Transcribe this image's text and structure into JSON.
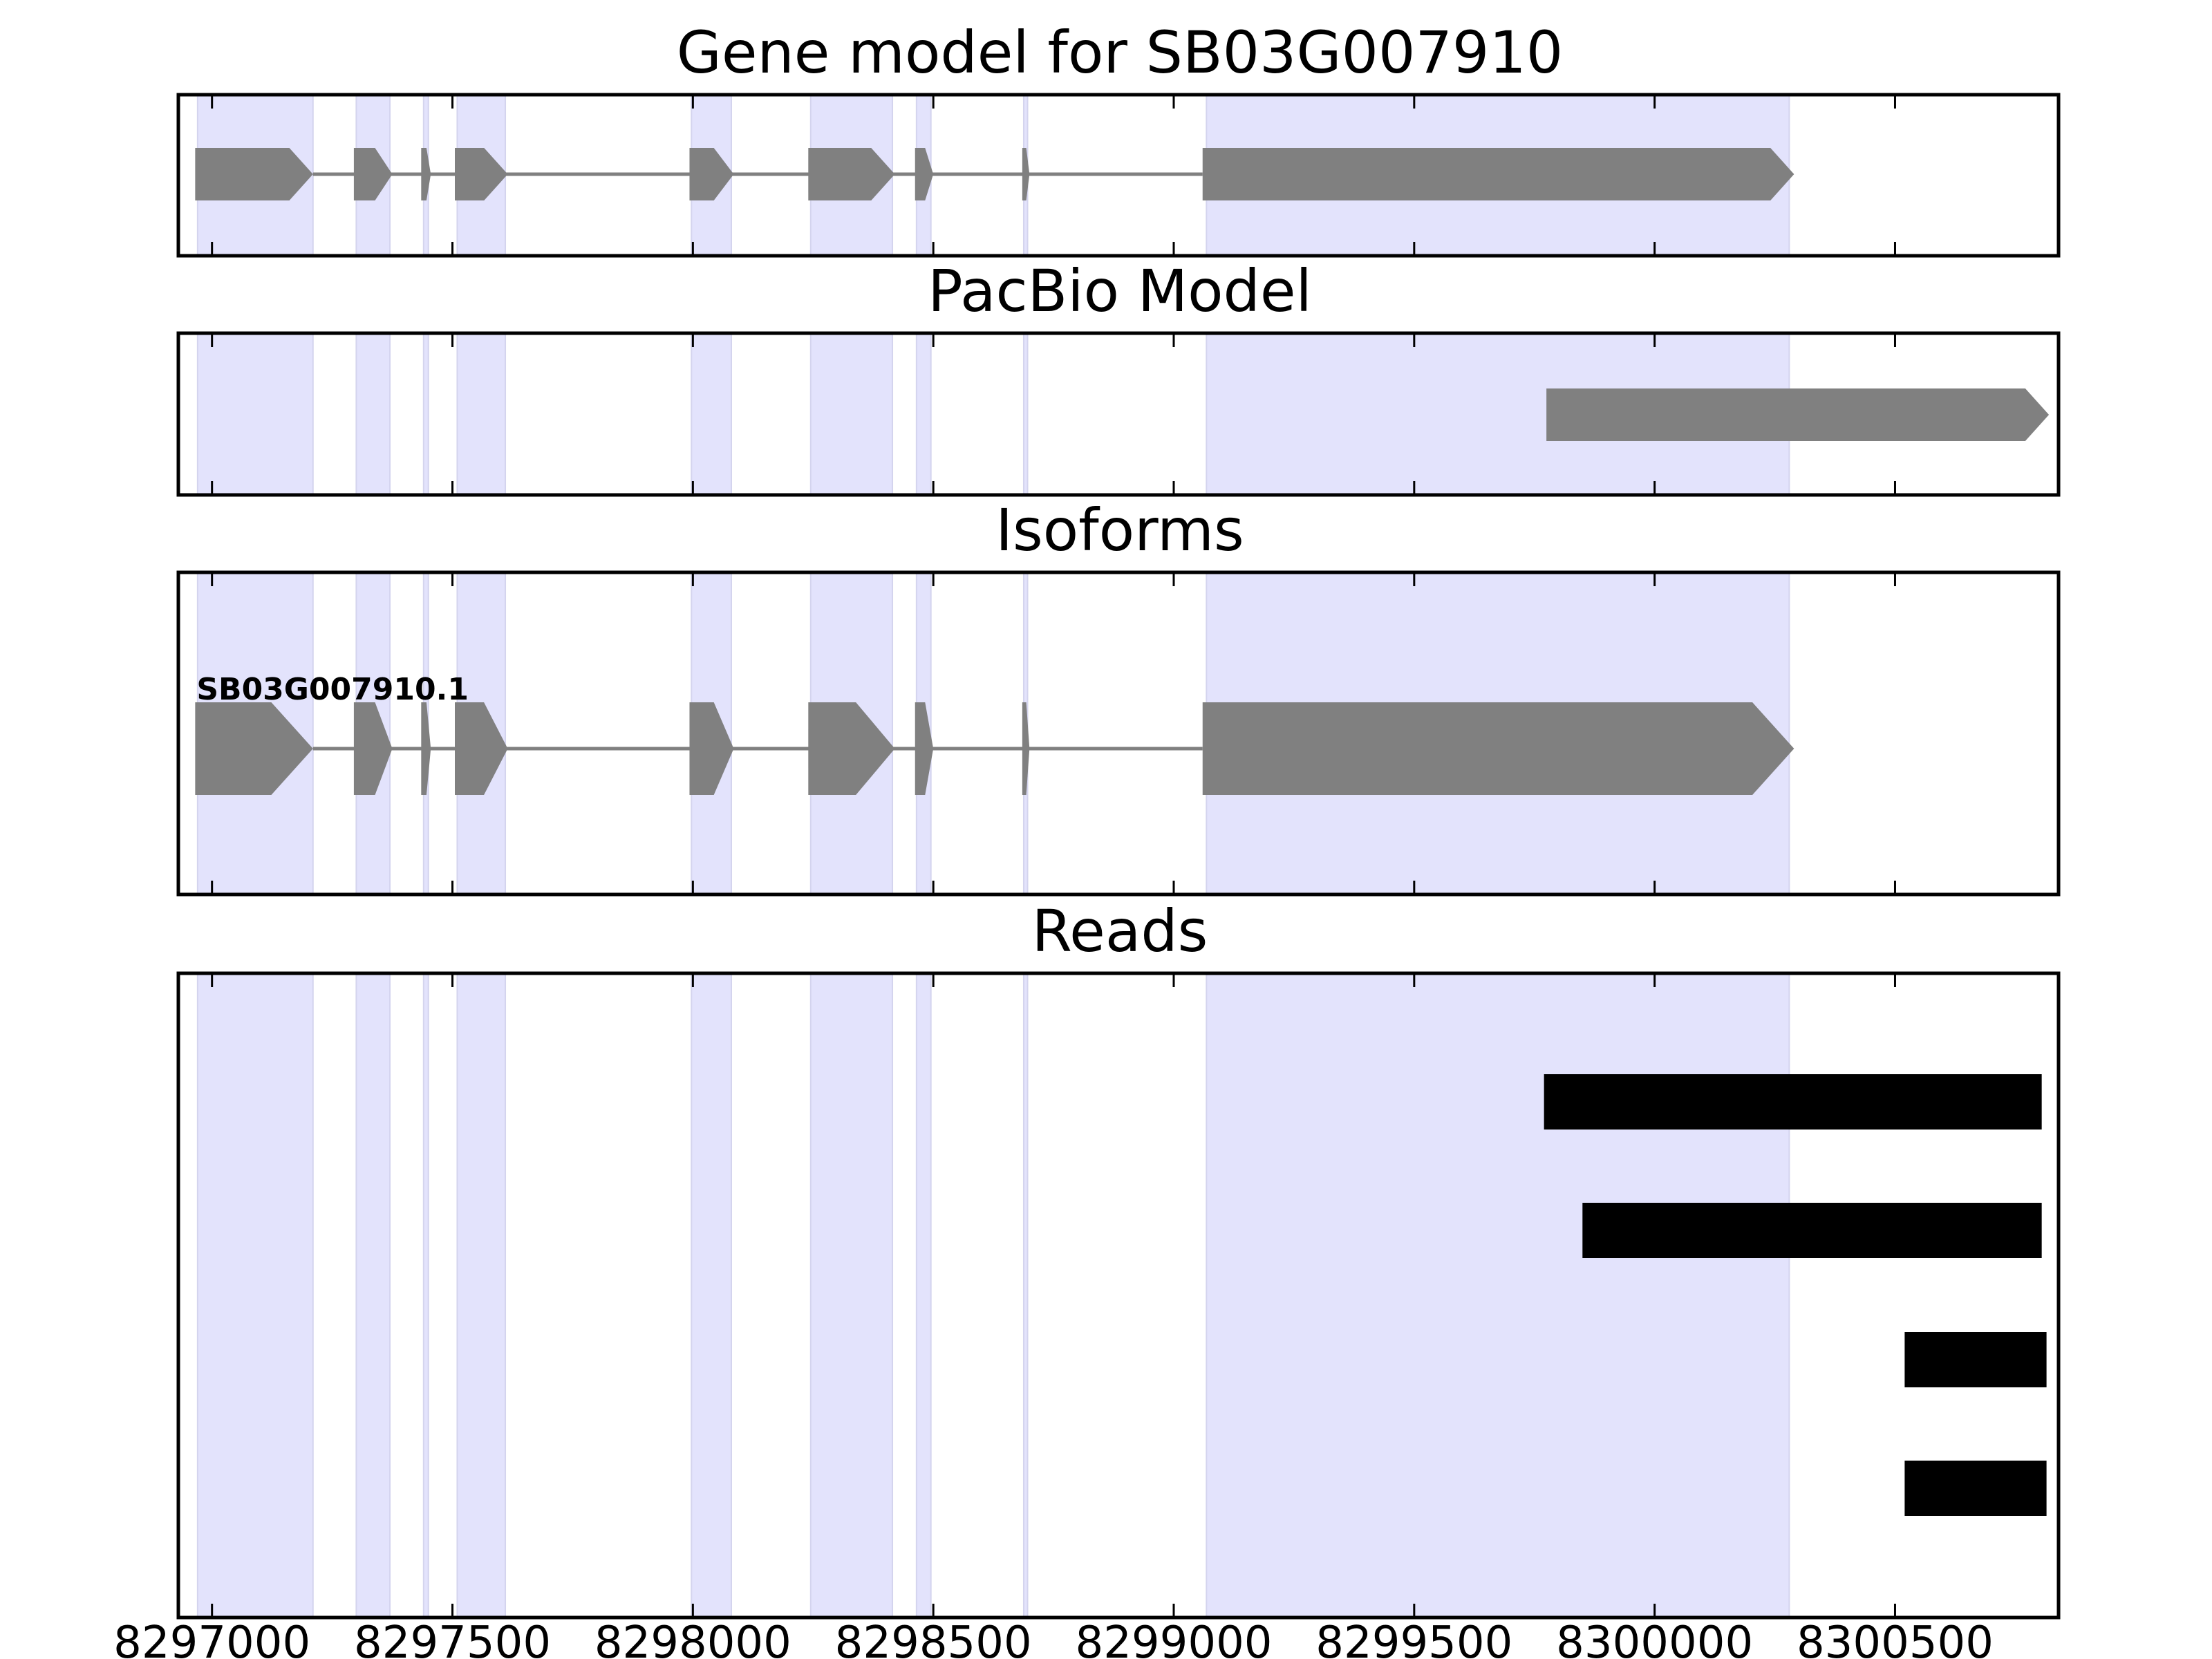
{
  "chart_data": {
    "type": "gene-track",
    "title": "Gene model for SB03G007910",
    "xlim": [
      8296930,
      8300840
    ],
    "x_ticks": [
      {
        "value": 8297000,
        "label": "8297000"
      },
      {
        "value": 8297500,
        "label": "8297500"
      },
      {
        "value": 8298000,
        "label": "8298000"
      },
      {
        "value": 8298500,
        "label": "8298500"
      },
      {
        "value": 8299000,
        "label": "8299000"
      },
      {
        "value": 8299500,
        "label": "8299500"
      },
      {
        "value": 8300000,
        "label": "8300000"
      },
      {
        "value": 8300500,
        "label": "8300500"
      }
    ],
    "colors": {
      "exon_shade": "#e3e3fc",
      "feature": "#808080",
      "read": "#000000",
      "frame": "#000000"
    },
    "shaded_exons": [
      [
        8296970,
        8297210
      ],
      [
        8297300,
        8297370
      ],
      [
        8297440,
        8297450
      ],
      [
        8297510,
        8297610
      ],
      [
        8297997,
        8298080
      ],
      [
        8298245,
        8298415
      ],
      [
        8298465,
        8298495
      ],
      [
        8298688,
        8298696
      ],
      [
        8299068,
        8300280
      ]
    ],
    "panels": [
      {
        "name": "gene-model",
        "title": "Gene model for SB03G007910",
        "features": [
          {
            "label": "",
            "strand": "+",
            "exons": [
              [
                8296965,
                8297210
              ],
              [
                8297295,
                8297375
              ],
              [
                8297435,
                8297455
              ],
              [
                8297505,
                8297615
              ],
              [
                8297993,
                8298085
              ],
              [
                8298240,
                8298420
              ],
              [
                8298462,
                8298500
              ],
              [
                8298685,
                8298700
              ],
              [
                8299060,
                8300290
              ]
            ]
          }
        ]
      },
      {
        "name": "pacbio-model",
        "title": "PacBio Model",
        "features": [
          {
            "label": "",
            "strand": "+",
            "exons": [
              [
                8299775,
                8300820
              ]
            ]
          }
        ]
      },
      {
        "name": "isoforms",
        "title": "Isoforms",
        "features": [
          {
            "label": "SB03G007910.1",
            "strand": "+",
            "exons": [
              [
                8296965,
                8297210
              ],
              [
                8297295,
                8297375
              ],
              [
                8297435,
                8297455
              ],
              [
                8297505,
                8297615
              ],
              [
                8297993,
                8298085
              ],
              [
                8298240,
                8298420
              ],
              [
                8298462,
                8298500
              ],
              [
                8298685,
                8298700
              ],
              [
                8299060,
                8300290
              ]
            ]
          }
        ]
      },
      {
        "name": "reads",
        "title": "Reads",
        "reads": [
          [
            8299770,
            8300805
          ],
          [
            8299850,
            8300805
          ],
          [
            8300520,
            8300815
          ],
          [
            8300520,
            8300815
          ]
        ]
      }
    ]
  }
}
